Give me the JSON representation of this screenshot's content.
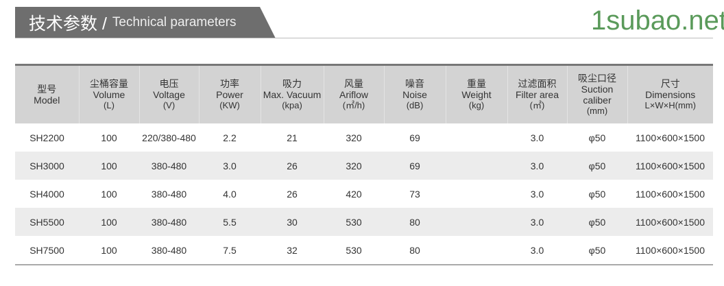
{
  "title": {
    "cn": "技术参数 /",
    "en": "Technical parameters"
  },
  "table": {
    "headers": [
      [
        "型号",
        "Model",
        ""
      ],
      [
        "尘桶容量",
        "Volume",
        "(L)"
      ],
      [
        "电压",
        "Voltage",
        "(V)"
      ],
      [
        "功率",
        "Power",
        "(KW)"
      ],
      [
        "吸力",
        "Max. Vacuum",
        "(kpa)"
      ],
      [
        "风量",
        "Ariflow",
        "(㎡/h)"
      ],
      [
        "噪音",
        "Noise",
        "(dB)"
      ],
      [
        "重量",
        "Weight",
        "(kg)"
      ],
      [
        "过滤面积",
        "Filter area",
        "(㎡)"
      ],
      [
        "吸尘口径",
        "Suction caliber",
        "(mm)"
      ],
      [
        "尺寸",
        "Dimensions",
        "L×W×H(mm)"
      ]
    ],
    "rows": [
      [
        "SH2200",
        "100",
        "220/380-480",
        "2.2",
        "21",
        "320",
        "69",
        "",
        "3.0",
        "φ50",
        "1100×600×1500"
      ],
      [
        "SH3000",
        "100",
        "380-480",
        "3.0",
        "26",
        "320",
        "69",
        "",
        "3.0",
        "φ50",
        "1100×600×1500"
      ],
      [
        "SH4000",
        "100",
        "380-480",
        "4.0",
        "26",
        "420",
        "73",
        "",
        "3.0",
        "φ50",
        "1100×600×1500"
      ],
      [
        "SH5500",
        "100",
        "380-480",
        "5.5",
        "30",
        "530",
        "80",
        "",
        "3.0",
        "φ50",
        "1100×600×1500"
      ],
      [
        "SH7500",
        "100",
        "380-480",
        "7.5",
        "32",
        "530",
        "80",
        "",
        "3.0",
        "φ50",
        "1100×600×1500"
      ]
    ]
  },
  "watermark": "1subao.net"
}
